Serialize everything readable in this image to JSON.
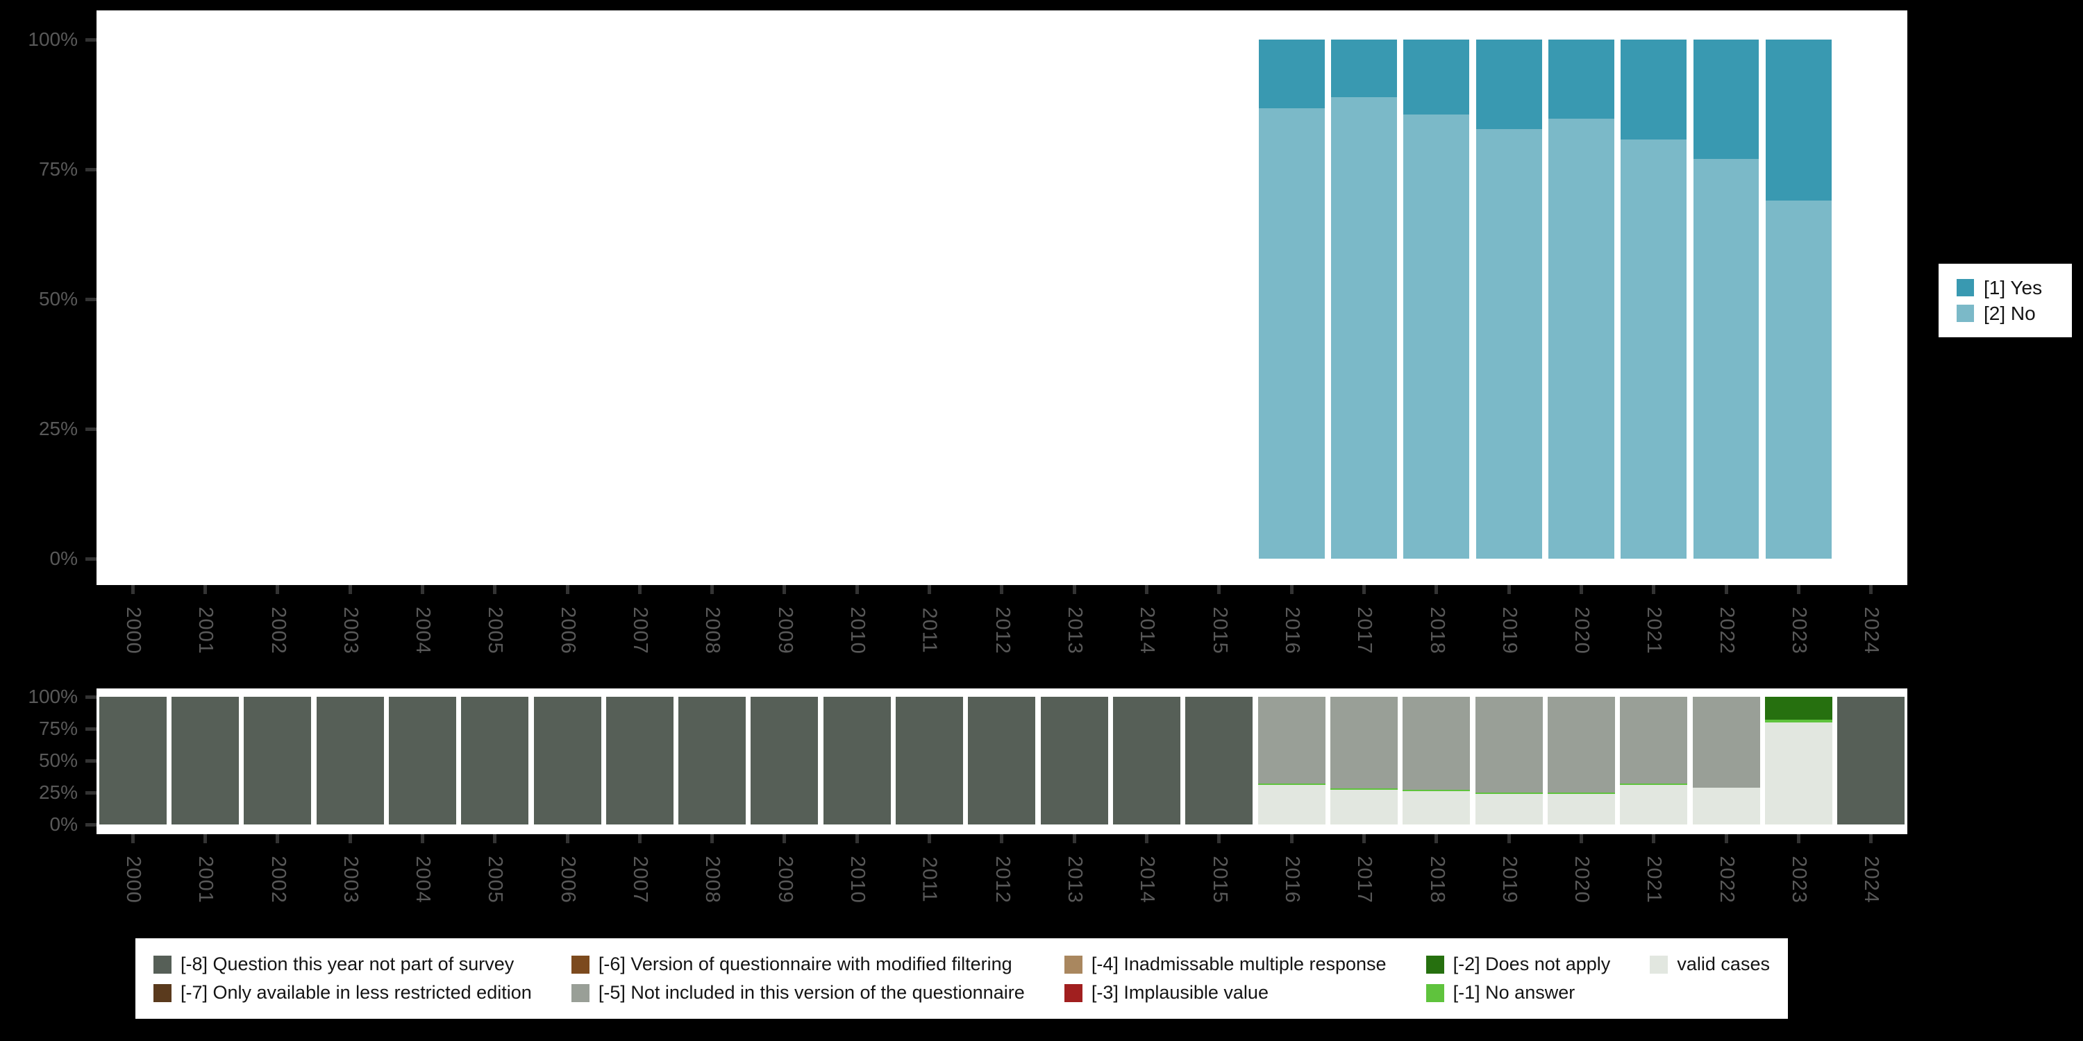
{
  "colors": {
    "page_bg": "#000000",
    "panel_bg": "#FFFFFF",
    "axis_label": "#595959",
    "tick": "#333333",
    "legend_text": "#141414"
  },
  "y_axis_tick_labels": [
    "100%",
    "75%",
    "50%",
    "25%",
    "0%"
  ],
  "chart_data": [
    {
      "type": "bar",
      "stacked": true,
      "title": "",
      "xlabel": "",
      "ylabel": "",
      "ylim": [
        0,
        100
      ],
      "grid": false,
      "legend_position": "right",
      "y_ticks": [
        "100%",
        "75%",
        "50%",
        "25%",
        "0%"
      ],
      "categories": [
        "2000",
        "2001",
        "2002",
        "2003",
        "2004",
        "2005",
        "2006",
        "2007",
        "2008",
        "2009",
        "2010",
        "2011",
        "2012",
        "2013",
        "2014",
        "2015",
        "2016",
        "2017",
        "2018",
        "2019",
        "2020",
        "2021",
        "2022",
        "2023",
        "2024"
      ],
      "series": [
        {
          "key": "yes",
          "name": "[1] Yes",
          "color": "#3999B1",
          "values": [
            0,
            0,
            0,
            0,
            0,
            0,
            0,
            0,
            0,
            0,
            0,
            0,
            0,
            0,
            0,
            0,
            13.2,
            11.1,
            14.5,
            17.2,
            15.2,
            19.3,
            23,
            31,
            0
          ]
        },
        {
          "key": "no",
          "name": "[2] No",
          "color": "#7BB9C8",
          "values": [
            0,
            0,
            0,
            0,
            0,
            0,
            0,
            0,
            0,
            0,
            0,
            0,
            0,
            0,
            0,
            0,
            86.8,
            88.9,
            85.5,
            82.8,
            84.8,
            80.7,
            77,
            69,
            0
          ]
        }
      ]
    },
    {
      "type": "bar",
      "stacked": true,
      "title": "",
      "xlabel": "",
      "ylabel": "",
      "ylim": [
        0,
        100
      ],
      "grid": false,
      "legend_position": "bottom",
      "y_ticks": [
        "100%",
        "75%",
        "50%",
        "25%",
        "0%"
      ],
      "categories": [
        "2000",
        "2001",
        "2002",
        "2003",
        "2004",
        "2005",
        "2006",
        "2007",
        "2008",
        "2009",
        "2010",
        "2011",
        "2012",
        "2013",
        "2014",
        "2015",
        "2016",
        "2017",
        "2018",
        "2019",
        "2020",
        "2021",
        "2022",
        "2023",
        "2024"
      ],
      "legend_order": [
        "m8",
        "m6",
        "m4",
        "m2",
        "valid",
        "m7",
        "m5",
        "m3",
        "m1"
      ],
      "series": [
        {
          "key": "m8",
          "name": "[-8] Question this year not part of survey",
          "color": "#565F57",
          "values": [
            100,
            100,
            100,
            100,
            100,
            100,
            100,
            100,
            100,
            100,
            100,
            100,
            100,
            100,
            100,
            100,
            0,
            0,
            0,
            0,
            0,
            0,
            0,
            0,
            100
          ]
        },
        {
          "key": "m7",
          "name": "[-7] Only available in less restricted edition",
          "color": "#5A3A1D",
          "values": [
            0,
            0,
            0,
            0,
            0,
            0,
            0,
            0,
            0,
            0,
            0,
            0,
            0,
            0,
            0,
            0,
            0,
            0,
            0,
            0,
            0,
            0,
            0,
            0,
            0
          ]
        },
        {
          "key": "m6",
          "name": "[-6] Version of questionnaire with modified filtering",
          "color": "#7C4A1E",
          "values": [
            0,
            0,
            0,
            0,
            0,
            0,
            0,
            0,
            0,
            0,
            0,
            0,
            0,
            0,
            0,
            0,
            0,
            0,
            0,
            0,
            0,
            0,
            0,
            0,
            0
          ]
        },
        {
          "key": "m5",
          "name": "[-5] Not included in this version of the questionnaire",
          "color": "#999F97",
          "values": [
            0,
            0,
            0,
            0,
            0,
            0,
            0,
            0,
            0,
            0,
            0,
            0,
            0,
            0,
            0,
            0,
            68,
            72,
            73,
            75,
            75,
            68,
            71,
            0,
            0
          ]
        },
        {
          "key": "m4",
          "name": "[-4] Inadmissable multiple response",
          "color": "#A9875F",
          "values": [
            0,
            0,
            0,
            0,
            0,
            0,
            0,
            0,
            0,
            0,
            0,
            0,
            0,
            0,
            0,
            0,
            0,
            0,
            0,
            0,
            0,
            0,
            0,
            0,
            0
          ]
        },
        {
          "key": "m3",
          "name": "[-3] Implausible value",
          "color": "#A11F1F",
          "values": [
            0,
            0,
            0,
            0,
            0,
            0,
            0,
            0,
            0,
            0,
            0,
            0,
            0,
            0,
            0,
            0,
            0,
            0,
            0,
            0,
            0,
            0,
            0,
            0,
            0
          ]
        },
        {
          "key": "m2",
          "name": "[-2] Does not apply",
          "color": "#26700F",
          "values": [
            0,
            0,
            0,
            0,
            0,
            0,
            0,
            0,
            0,
            0,
            0,
            0,
            0,
            0,
            0,
            0,
            0,
            0,
            0,
            0,
            0,
            0,
            0,
            18,
            0
          ]
        },
        {
          "key": "m1",
          "name": "[-1] No answer",
          "color": "#5FC33D",
          "values": [
            0,
            0,
            0,
            0,
            0,
            0,
            0,
            0,
            0,
            0,
            0,
            0,
            0,
            0,
            0,
            0,
            1,
            1,
            1,
            1,
            1,
            1,
            0,
            2,
            0
          ]
        },
        {
          "key": "valid",
          "name": "valid cases",
          "color": "#E2E7E0",
          "values": [
            0,
            0,
            0,
            0,
            0,
            0,
            0,
            0,
            0,
            0,
            0,
            0,
            0,
            0,
            0,
            0,
            31,
            27,
            26,
            24,
            24,
            31,
            29,
            80,
            0
          ]
        }
      ]
    }
  ]
}
